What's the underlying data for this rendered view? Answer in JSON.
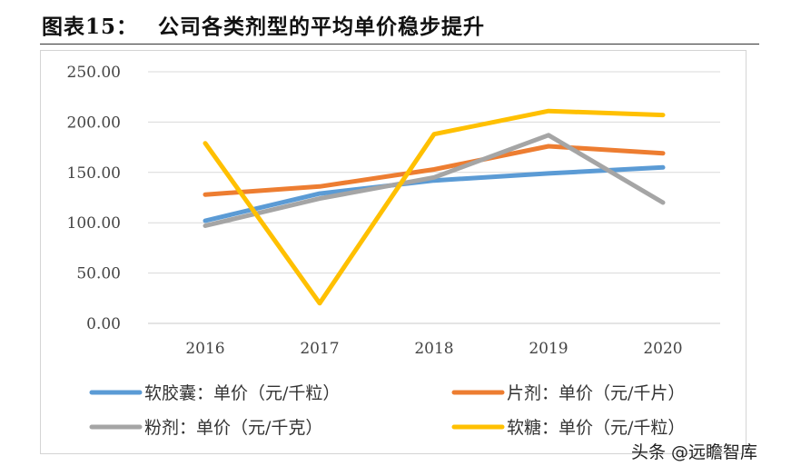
{
  "figure": {
    "title_num": "图表15：",
    "title_text": "公司各类剂型的平均单价稳步提升",
    "watermark": "头条 @远瞻智库"
  },
  "chart_data": {
    "type": "line",
    "x": [
      "2016",
      "2017",
      "2018",
      "2019",
      "2020"
    ],
    "ylim": [
      0,
      250
    ],
    "yticks": [
      "0.00",
      "50.00",
      "100.00",
      "150.00",
      "200.00",
      "250.00"
    ],
    "grid": true,
    "legend_position": "bottom",
    "series": [
      {
        "name": "软胶囊：单价（元/千粒）",
        "color": "#5b9bd5",
        "values": [
          102,
          129,
          142,
          149,
          155
        ]
      },
      {
        "name": "片剂：单价（元/千片）",
        "color": "#ed7d31",
        "values": [
          128,
          136,
          153,
          176,
          169
        ]
      },
      {
        "name": "粉剂：单价（元/千克）",
        "color": "#a5a5a5",
        "values": [
          97,
          124,
          145,
          187,
          120
        ]
      },
      {
        "name": "软糖：单价（元/千粒）",
        "color": "#ffc000",
        "values": [
          179,
          20,
          188,
          211,
          207
        ]
      }
    ]
  }
}
